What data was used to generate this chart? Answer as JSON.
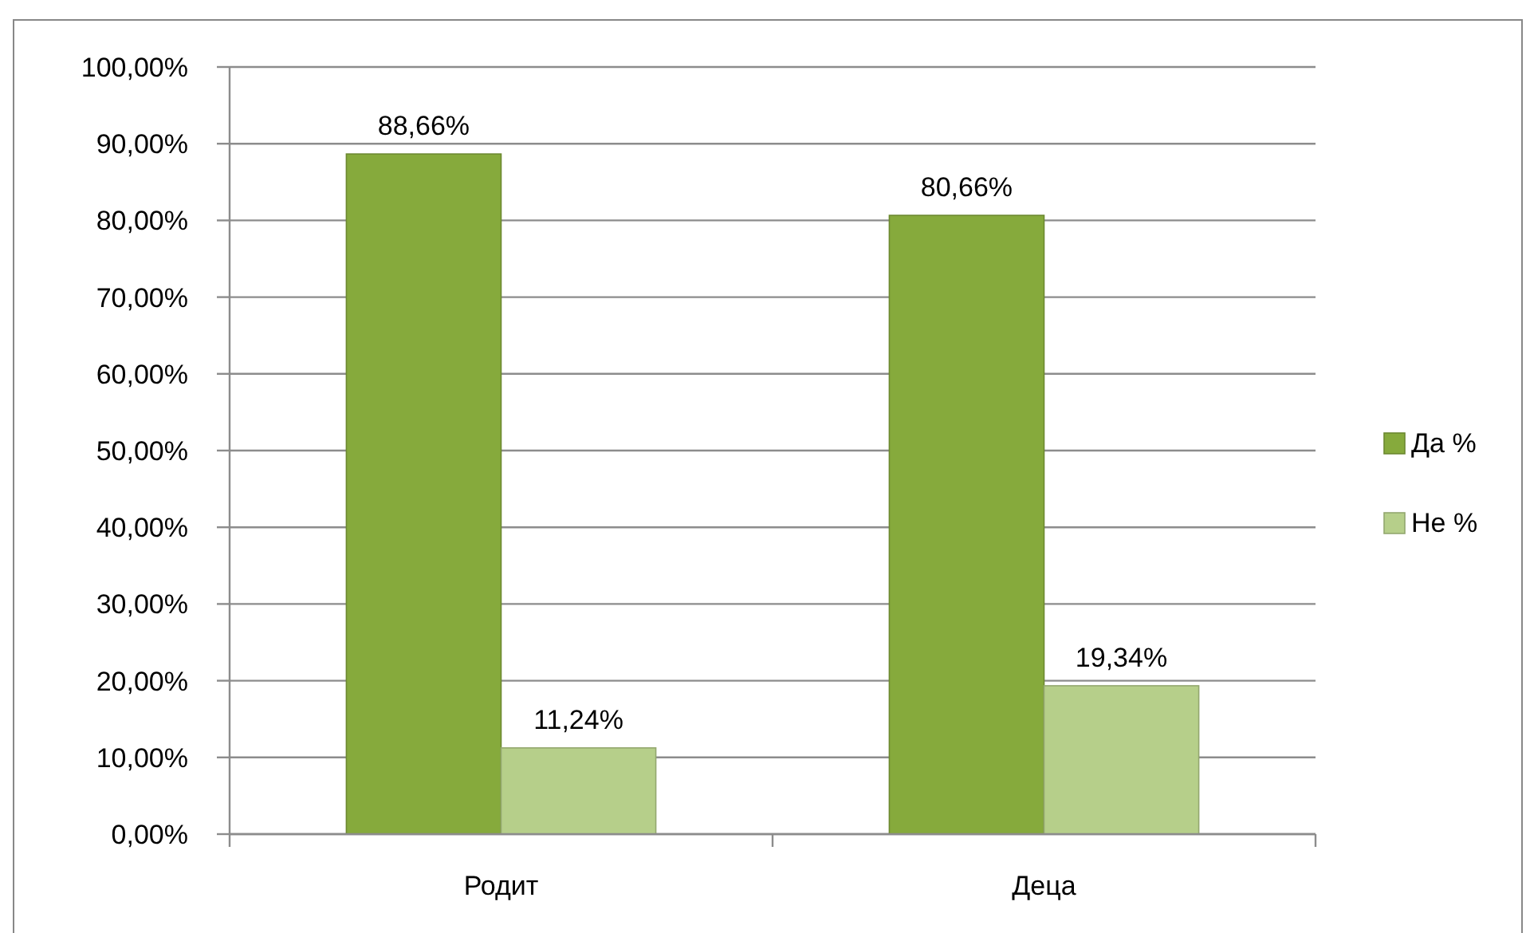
{
  "chart_data": {
    "type": "bar",
    "categories": [
      "Родит",
      "Деца"
    ],
    "series": [
      {
        "name": "Да %",
        "color": "#86aa3c",
        "values": [
          88.66,
          80.66
        ],
        "value_labels": [
          "88,66%",
          "80,66%"
        ]
      },
      {
        "name": "Не %",
        "color": "#b6cf8a",
        "values": [
          11.24,
          19.34
        ],
        "value_labels": [
          "11,24%",
          "19,34%"
        ]
      }
    ],
    "ylim": [
      0,
      100
    ],
    "yticks": [
      {
        "value": 0,
        "label": "0,00%"
      },
      {
        "value": 10,
        "label": "10,00%"
      },
      {
        "value": 20,
        "label": "20,00%"
      },
      {
        "value": 30,
        "label": "30,00%"
      },
      {
        "value": 40,
        "label": "40,00%"
      },
      {
        "value": 50,
        "label": "50,00%"
      },
      {
        "value": 60,
        "label": "60,00%"
      },
      {
        "value": 70,
        "label": "70,00%"
      },
      {
        "value": 80,
        "label": "80,00%"
      },
      {
        "value": 90,
        "label": "90,00%"
      },
      {
        "value": 100,
        "label": "100,00%"
      }
    ],
    "grid": "y",
    "legend": "right"
  }
}
